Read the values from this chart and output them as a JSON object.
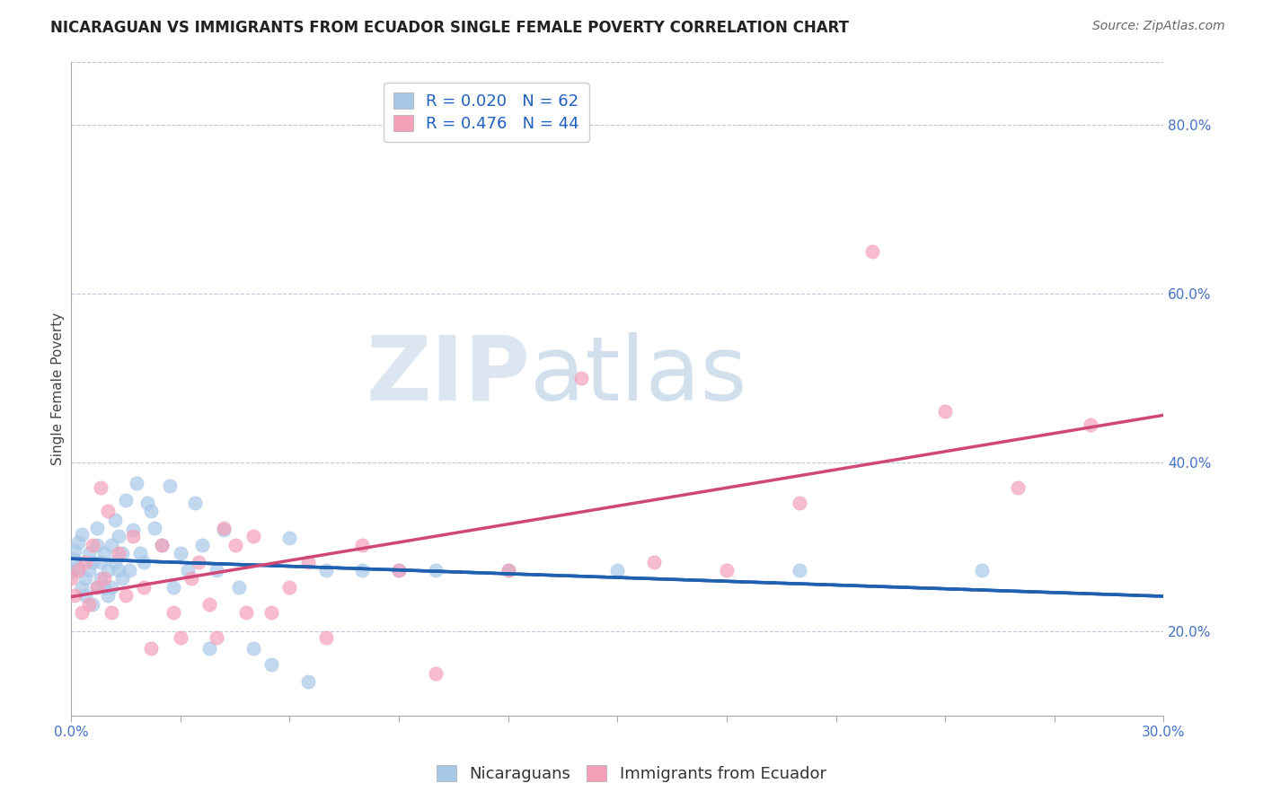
{
  "title": "NICARAGUAN VS IMMIGRANTS FROM ECUADOR SINGLE FEMALE POVERTY CORRELATION CHART",
  "source": "Source: ZipAtlas.com",
  "ylabel": "Single Female Poverty",
  "legend_labels": [
    "Nicaraguans",
    "Immigrants from Ecuador"
  ],
  "legend_R": [
    0.02,
    0.476
  ],
  "legend_N": [
    62,
    44
  ],
  "blue_color": "#a8c8e8",
  "pink_color": "#f4a0b8",
  "blue_line_color": "#2060b0",
  "pink_line_color": "#d04878",
  "background_color": "#ffffff",
  "watermark_zip": "ZIP",
  "watermark_atlas": "atlas",
  "right_yticks": [
    0.2,
    0.4,
    0.6,
    0.8
  ],
  "right_ytick_labels": [
    "20.0%",
    "40.0%",
    "60.0%",
    "80.0%"
  ],
  "xmin": 0.0,
  "xmax": 0.3,
  "ymin": 0.1,
  "ymax": 0.875,
  "blue_scatter_x": [
    0.0,
    0.001,
    0.001,
    0.002,
    0.002,
    0.003,
    0.003,
    0.004,
    0.004,
    0.005,
    0.005,
    0.006,
    0.006,
    0.007,
    0.007,
    0.007,
    0.008,
    0.008,
    0.009,
    0.009,
    0.01,
    0.01,
    0.011,
    0.011,
    0.012,
    0.012,
    0.013,
    0.013,
    0.014,
    0.014,
    0.015,
    0.016,
    0.017,
    0.018,
    0.019,
    0.02,
    0.021,
    0.022,
    0.023,
    0.025,
    0.027,
    0.028,
    0.03,
    0.032,
    0.034,
    0.036,
    0.038,
    0.04,
    0.042,
    0.046,
    0.05,
    0.055,
    0.06,
    0.065,
    0.07,
    0.08,
    0.09,
    0.1,
    0.12,
    0.15,
    0.2,
    0.25
  ],
  "blue_scatter_y": [
    0.27,
    0.285,
    0.295,
    0.275,
    0.305,
    0.252,
    0.315,
    0.242,
    0.262,
    0.272,
    0.292,
    0.232,
    0.282,
    0.252,
    0.302,
    0.322,
    0.262,
    0.282,
    0.252,
    0.292,
    0.242,
    0.272,
    0.302,
    0.252,
    0.332,
    0.282,
    0.272,
    0.312,
    0.262,
    0.292,
    0.355,
    0.272,
    0.32,
    0.375,
    0.292,
    0.282,
    0.352,
    0.342,
    0.322,
    0.302,
    0.372,
    0.252,
    0.292,
    0.272,
    0.352,
    0.302,
    0.18,
    0.272,
    0.32,
    0.252,
    0.18,
    0.16,
    0.31,
    0.14,
    0.272,
    0.272,
    0.272,
    0.272,
    0.272,
    0.272,
    0.272,
    0.272
  ],
  "pink_scatter_x": [
    0.0,
    0.001,
    0.002,
    0.003,
    0.004,
    0.005,
    0.006,
    0.007,
    0.008,
    0.009,
    0.01,
    0.011,
    0.013,
    0.015,
    0.017,
    0.02,
    0.022,
    0.025,
    0.028,
    0.03,
    0.033,
    0.035,
    0.038,
    0.04,
    0.042,
    0.045,
    0.048,
    0.05,
    0.055,
    0.06,
    0.065,
    0.07,
    0.08,
    0.09,
    0.1,
    0.12,
    0.14,
    0.16,
    0.18,
    0.2,
    0.22,
    0.24,
    0.26,
    0.28
  ],
  "pink_scatter_y": [
    0.262,
    0.242,
    0.272,
    0.222,
    0.282,
    0.232,
    0.302,
    0.252,
    0.37,
    0.262,
    0.342,
    0.222,
    0.292,
    0.242,
    0.312,
    0.252,
    0.18,
    0.302,
    0.222,
    0.192,
    0.262,
    0.282,
    0.232,
    0.192,
    0.322,
    0.302,
    0.222,
    0.312,
    0.222,
    0.252,
    0.282,
    0.192,
    0.302,
    0.272,
    0.15,
    0.272,
    0.5,
    0.282,
    0.272,
    0.352,
    0.65,
    0.46,
    0.37,
    0.445
  ],
  "title_fontsize": 12,
  "source_fontsize": 10,
  "axis_label_fontsize": 11,
  "tick_fontsize": 11,
  "legend_fontsize": 13,
  "scatter_size": 120,
  "scatter_alpha": 0.7
}
